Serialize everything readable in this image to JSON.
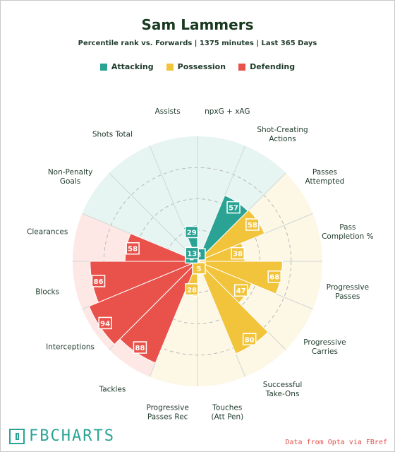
{
  "header": {
    "title": "Sam Lammers",
    "subtitle": "Percentile rank vs. Forwards | 1375 minutes | Last 365 Days"
  },
  "legend": [
    {
      "label": "Attacking",
      "color": "#2aa394"
    },
    {
      "label": "Possession",
      "color": "#f2c43c"
    },
    {
      "label": "Defending",
      "color": "#e8524a"
    }
  ],
  "footer": {
    "logo_text": "FBCHARTS",
    "credit": "Data from Opta via FBref"
  },
  "chart_data": {
    "type": "radar",
    "scale": [
      0,
      100
    ],
    "groups": {
      "Attacking": {
        "color": "#2aa394",
        "bg": "#e6f5f2"
      },
      "Possession": {
        "color": "#f2c43c",
        "bg": "#fdf7e6"
      },
      "Defending": {
        "color": "#e8524a",
        "bg": "#fde8e6"
      }
    },
    "metrics": [
      {
        "label": "npxG + xAG",
        "value": 3,
        "group": "Attacking"
      },
      {
        "label": "Shot-Creating Actions",
        "value": 57,
        "group": "Attacking"
      },
      {
        "label": "Passes Attempted",
        "value": 58,
        "group": "Possession"
      },
      {
        "label": "Pass Completion %",
        "value": 38,
        "group": "Possession"
      },
      {
        "label": "Progressive Passes",
        "value": 68,
        "group": "Possession"
      },
      {
        "label": "Progressive Carries",
        "value": 47,
        "group": "Possession"
      },
      {
        "label": "Successful Take-Ons",
        "value": 80,
        "group": "Possession"
      },
      {
        "label": "Touches (Att Pen)",
        "value": 5,
        "group": "Possession"
      },
      {
        "label": "Progressive Passes Rec",
        "value": 28,
        "group": "Possession"
      },
      {
        "label": "Tackles",
        "value": 88,
        "group": "Defending"
      },
      {
        "label": "Interceptions",
        "value": 94,
        "group": "Defending"
      },
      {
        "label": "Blocks",
        "value": 86,
        "group": "Defending"
      },
      {
        "label": "Clearances",
        "value": 58,
        "group": "Defending"
      },
      {
        "label": "Non-Penalty Goals",
        "value": 2,
        "group": "Attacking"
      },
      {
        "label": "Shots Total",
        "value": 13,
        "group": "Attacking"
      },
      {
        "label": "Assists",
        "value": 29,
        "group": "Attacking"
      }
    ]
  }
}
